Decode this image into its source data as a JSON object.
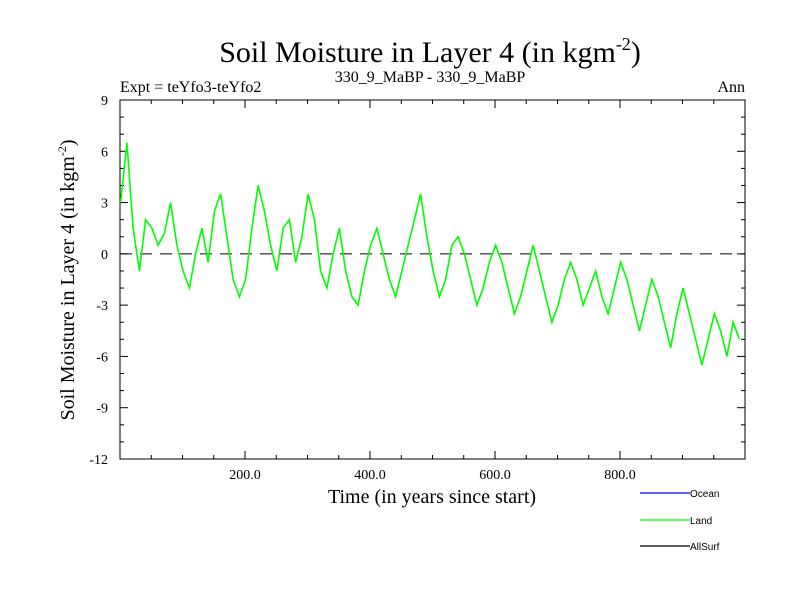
{
  "chart_data": {
    "type": "line",
    "title": "Soil Moisture in Layer 4 (in kgm",
    "title_superscript": "-2",
    "title_close": ")",
    "subtitle_left": "Expt = teYfo3-teYfo2",
    "subtitle_center": "330_9_MaBP - 330_9_MaBP",
    "subtitle_right": "Ann",
    "xlabel": "Time (in years since start)",
    "ylabel": "Soil Moisture in Layer 4 (in kgm",
    "ylabel_superscript": "-2",
    "ylabel_close": ")",
    "xlim": [
      0,
      1000
    ],
    "ylim": [
      -12,
      9
    ],
    "yticks": [
      9,
      6,
      3,
      0,
      -3,
      -6,
      -9,
      -12
    ],
    "ytick_labels": [
      "9",
      "6",
      "3",
      "0",
      "-3",
      "-6",
      "-9",
      "-12"
    ],
    "xticks": [
      200,
      400,
      600,
      800
    ],
    "xtick_labels": [
      "200.0",
      "400.0",
      "600.0",
      "800.0"
    ],
    "zero_line": "dashed",
    "legend_position": "bottom-right",
    "colors": {
      "Ocean": "#0000ff",
      "Land": "#00ff00",
      "AllSurf": "#000000",
      "axes": "#000000",
      "zero": "#000000"
    },
    "series": [
      {
        "name": "Ocean",
        "values": []
      },
      {
        "name": "Land",
        "x_start": 1,
        "x_step": 10,
        "values": [
          3.0,
          6.5,
          1.5,
          -1.0,
          2.0,
          1.5,
          0.5,
          1.2,
          3.0,
          0.5,
          -1.0,
          -2.0,
          0.0,
          1.5,
          -0.5,
          2.5,
          3.5,
          1.0,
          -1.5,
          -2.5,
          -1.5,
          1.5,
          4.0,
          2.5,
          0.5,
          -1.0,
          1.5,
          2.0,
          -0.5,
          1.0,
          3.5,
          2.0,
          -1.0,
          -2.0,
          0.0,
          1.5,
          -1.0,
          -2.5,
          -3.0,
          -1.0,
          0.5,
          1.5,
          0.0,
          -1.5,
          -2.5,
          -1.0,
          0.5,
          2.0,
          3.5,
          1.0,
          -1.0,
          -2.5,
          -1.5,
          0.5,
          1.0,
          0.0,
          -1.5,
          -3.0,
          -2.0,
          -0.5,
          0.5,
          -0.5,
          -2.0,
          -3.5,
          -2.5,
          -1.0,
          0.5,
          -1.0,
          -2.5,
          -4.0,
          -3.0,
          -1.5,
          -0.5,
          -1.5,
          -3.0,
          -2.0,
          -1.0,
          -2.5,
          -3.5,
          -2.0,
          -0.5,
          -1.5,
          -3.0,
          -4.5,
          -3.0,
          -1.5,
          -2.5,
          -4.0,
          -5.5,
          -3.5,
          -2.0,
          -3.5,
          -5.0,
          -6.5,
          -5.0,
          -3.5,
          -4.5,
          -6.0,
          -4.0,
          -5.0
        ]
      },
      {
        "name": "AllSurf",
        "values": []
      }
    ]
  }
}
